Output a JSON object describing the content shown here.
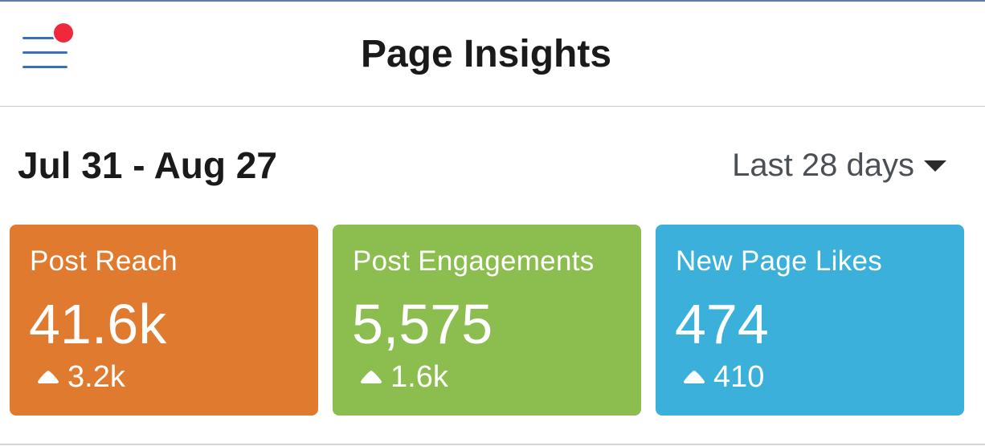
{
  "header": {
    "title": "Page Insights",
    "menu_icon": "hamburger-menu-icon",
    "notification_color": "#f0283c"
  },
  "date_bar": {
    "range_text": "Jul 31 - Aug 27",
    "period_select": {
      "selected": "Last 28 days",
      "icon": "caret-down-icon"
    }
  },
  "cards": [
    {
      "title": "Post Reach",
      "value": "41.6k",
      "delta": "3.2k",
      "delta_icon": "arrow-up-icon",
      "color": "#e07a2e"
    },
    {
      "title": "Post Engagements",
      "value": "5,575",
      "delta": "1.6k",
      "delta_icon": "arrow-up-icon",
      "color": "#8bbd4f"
    },
    {
      "title": "New Page Likes",
      "value": "474",
      "delta": "410",
      "delta_icon": "arrow-up-icon",
      "color": "#3bb0db"
    }
  ]
}
